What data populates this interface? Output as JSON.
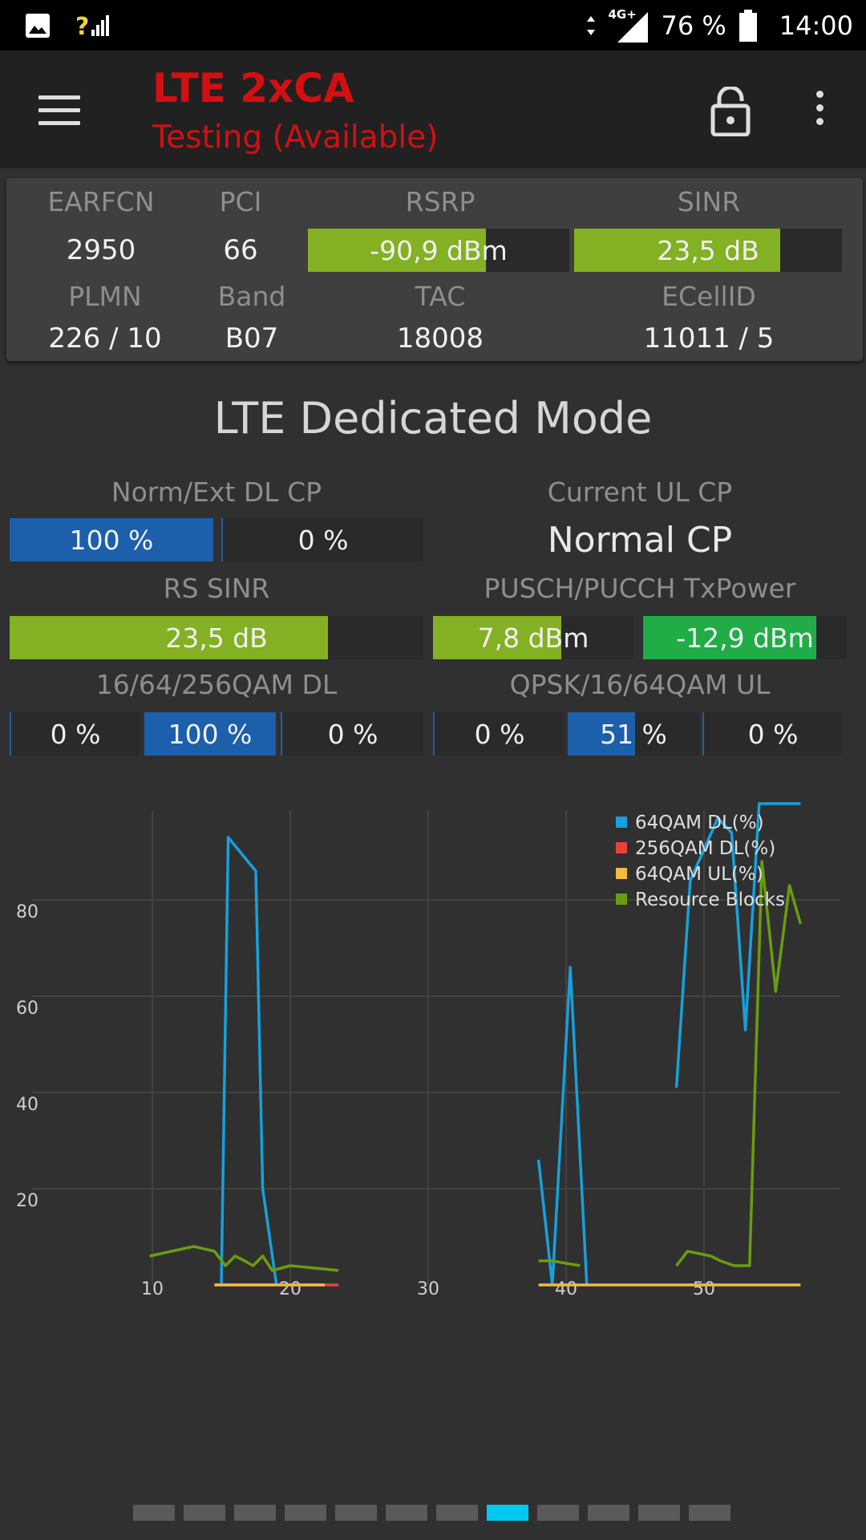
{
  "status_bar": {
    "network": "4G+",
    "battery": "76 %",
    "time": "14:00"
  },
  "app_bar": {
    "title": "LTE 2xCA",
    "subtitle": "Testing (Available)"
  },
  "cell_info": {
    "earfcn": {
      "label": "EARFCN",
      "value": "2950"
    },
    "pci": {
      "label": "PCI",
      "value": "66"
    },
    "rsrp": {
      "label": "RSRP",
      "value": "-90,9 dBm",
      "fill": 0.68
    },
    "sinr": {
      "label": "SINR",
      "value": "23,5 dB",
      "fill": 0.77
    },
    "plmn": {
      "label": "PLMN",
      "value": "226 / 10"
    },
    "band": {
      "label": "Band",
      "value": "B07"
    },
    "tac": {
      "label": "TAC",
      "value": "18008"
    },
    "ecellid": {
      "label": "ECellID",
      "value": "11011 / 5"
    }
  },
  "dedicated": {
    "title": "LTE Dedicated Mode",
    "dl_cp": {
      "label": "Norm/Ext DL CP",
      "normal": "100 %",
      "extended": "0 %",
      "normal_fill": 1.0,
      "extended_fill": 0.0
    },
    "ul_cp": {
      "label": "Current UL CP",
      "value": "Normal CP"
    },
    "rs_sinr": {
      "label": "RS SINR",
      "value": "23,5 dB",
      "fill": 0.77
    },
    "txpower": {
      "label": "PUSCH/PUCCH TxPower",
      "pusch": "7,8 dBm",
      "pucch": "-12,9 dBm",
      "pusch_fill": 0.64,
      "pucch_fill": 0.85
    },
    "qam_dl": {
      "label": "16/64/256QAM DL",
      "values": [
        "0 %",
        "100 %",
        "0 %"
      ],
      "fills": [
        0.0,
        1.0,
        0.0
      ]
    },
    "qam_ul": {
      "label": "QPSK/16/64QAM UL",
      "values": [
        "0 %",
        "51 %",
        "0 %"
      ],
      "fills": [
        0.0,
        0.51,
        0.0
      ]
    }
  },
  "colors": {
    "accent_red": "#d30f12",
    "bar_green": "#84b023",
    "bar_green_dark": "#21ac48",
    "bar_blue": "#1c5fab",
    "pager_active": "#00c8ee"
  },
  "chart_data": {
    "type": "line",
    "xlim": [
      10,
      60
    ],
    "ylim": [
      0,
      100
    ],
    "yticks": [
      20,
      40,
      60,
      80
    ],
    "xticks": [
      10,
      20,
      30,
      40,
      50
    ],
    "legend_position": "top-right",
    "grid": true,
    "series": [
      {
        "name": "64QAM DL(%)",
        "color": "#16a0dc",
        "segments": [
          [
            [
              15,
              0
            ],
            [
              15.5,
              93
            ],
            [
              17.5,
              86
            ],
            [
              18,
              20
            ],
            [
              19,
              0
            ]
          ],
          [
            [
              38,
              26
            ],
            [
              39,
              0
            ],
            [
              40.3,
              66
            ],
            [
              41.5,
              0
            ]
          ],
          [
            [
              48,
              41
            ],
            [
              49,
              84
            ],
            [
              51,
              97
            ],
            [
              52,
              94
            ],
            [
              53,
              53
            ],
            [
              54,
              100
            ],
            [
              57,
              100
            ]
          ]
        ]
      },
      {
        "name": "256QAM DL(%)",
        "color": "#e8413c",
        "segments": [
          [
            [
              14.5,
              0
            ],
            [
              23.5,
              0
            ]
          ]
        ]
      },
      {
        "name": "64QAM UL(%)",
        "color": "#f4b942",
        "segments": [
          [
            [
              14.5,
              0
            ],
            [
              22.5,
              0
            ]
          ],
          [
            [
              38,
              0
            ],
            [
              57,
              0
            ]
          ]
        ]
      },
      {
        "name": "Resource Blocks",
        "color": "#6a9c10",
        "segments": [
          [
            [
              9.8,
              6
            ],
            [
              13,
              8
            ],
            [
              14.5,
              7
            ],
            [
              15.3,
              4
            ],
            [
              16,
              6
            ],
            [
              16.7,
              5
            ],
            [
              17.3,
              4
            ],
            [
              18,
              6
            ],
            [
              18.7,
              3
            ],
            [
              20,
              4
            ],
            [
              23.5,
              3
            ]
          ],
          [
            [
              38,
              5
            ],
            [
              39,
              5
            ],
            [
              41,
              4
            ]
          ],
          [
            [
              48,
              4
            ],
            [
              48.8,
              7
            ],
            [
              50.5,
              6
            ],
            [
              51.2,
              5
            ],
            [
              52.2,
              4
            ],
            [
              53.3,
              4
            ],
            [
              54.2,
              88
            ],
            [
              55.2,
              61
            ],
            [
              56.2,
              83
            ],
            [
              57,
              75
            ]
          ]
        ]
      }
    ]
  },
  "pager": {
    "count": 12,
    "active_index": 7
  }
}
